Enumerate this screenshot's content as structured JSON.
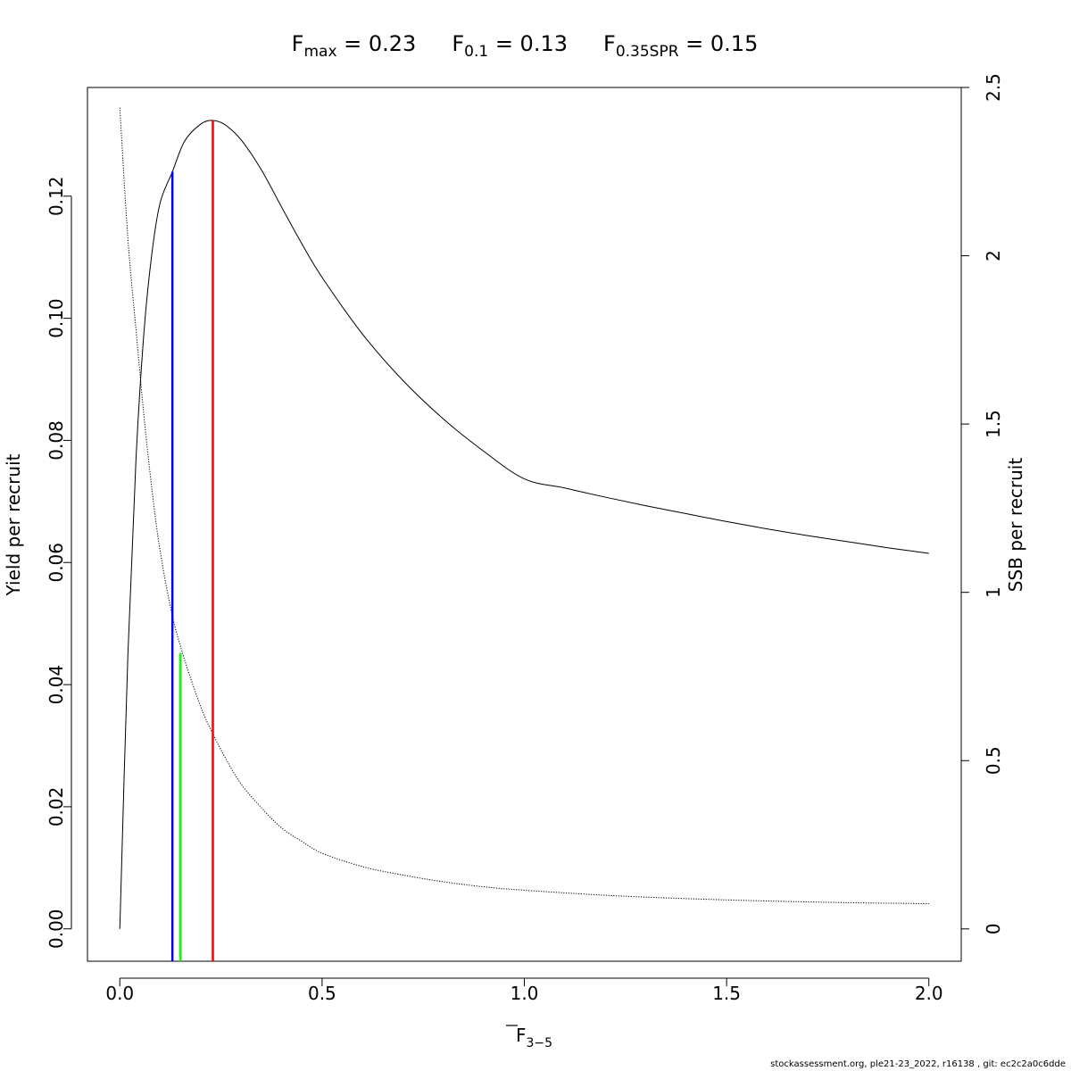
{
  "title": {
    "fmax": {
      "symbol": "F",
      "subscript": "max",
      "value_text": " = 0.23"
    },
    "f01": {
      "symbol": "F",
      "subscript": "0.1",
      "value_text": " = 0.13"
    },
    "f035": {
      "symbol": "F",
      "subscript": "0.35SPR",
      "value_text": " = 0.15"
    }
  },
  "footer": "stockassessment.org, ple21-23_2022, r16138 , git: ec2c2a0c6dde",
  "chart_data": {
    "type": "line",
    "x_label": {
      "symbol": "F",
      "subscript": "3−5",
      "overline": true
    },
    "ylabel_left": "Yield per recruit",
    "ylabel_right": "SSB per recruit",
    "xlim": [
      -0.08,
      2.08
    ],
    "ylim_left": [
      -0.0053,
      0.1378
    ],
    "ylim_right": [
      -0.096,
      2.5
    ],
    "x_ticks": [
      0.0,
      0.5,
      1.0,
      1.5,
      2.0
    ],
    "x_tick_labels": [
      "0.0",
      "0.5",
      "1.0",
      "1.5",
      "2.0"
    ],
    "y_left_ticks": [
      0.0,
      0.02,
      0.04,
      0.06,
      0.08,
      0.1,
      0.12
    ],
    "y_left_tick_labels": [
      "0.00",
      "0.02",
      "0.04",
      "0.06",
      "0.08",
      "0.10",
      "0.12"
    ],
    "y_right_ticks": [
      0,
      0.5,
      1,
      1.5,
      2,
      2.5
    ],
    "y_right_tick_labels": [
      "0",
      "0.5",
      "1",
      "1.5",
      "2",
      "2.5"
    ],
    "series": [
      {
        "axis": "left",
        "style": "solid",
        "color": "#000000",
        "x": [
          0,
          0.02,
          0.04,
          0.06,
          0.08,
          0.1,
          0.13,
          0.16,
          0.2,
          0.23,
          0.26,
          0.3,
          0.35,
          0.4,
          0.45,
          0.5,
          0.6,
          0.7,
          0.8,
          0.9,
          1.0,
          1.1,
          1.2,
          1.3,
          1.4,
          1.5,
          1.6,
          1.7,
          1.8,
          1.9,
          2.0
        ],
        "y": [
          0.0,
          0.045,
          0.077,
          0.098,
          0.111,
          0.119,
          0.124,
          0.129,
          0.1318,
          0.1324,
          0.1317,
          0.1292,
          0.1243,
          0.1182,
          0.1122,
          0.1067,
          0.0974,
          0.0898,
          0.0835,
          0.0782,
          0.0737,
          0.0722,
          0.0707,
          0.0693,
          0.068,
          0.0667,
          0.0655,
          0.0644,
          0.0634,
          0.0624,
          0.0615
        ]
      },
      {
        "axis": "right",
        "style": "dotted",
        "color": "#000000",
        "x": [
          0,
          0.02,
          0.04,
          0.06,
          0.08,
          0.1,
          0.13,
          0.16,
          0.2,
          0.23,
          0.26,
          0.3,
          0.35,
          0.4,
          0.45,
          0.5,
          0.6,
          0.7,
          0.8,
          0.9,
          1.0,
          1.2,
          1.4,
          1.6,
          1.8,
          2.0
        ],
        "y": [
          2.44,
          2.05,
          1.78,
          1.52,
          1.3,
          1.12,
          0.93,
          0.8,
          0.66,
          0.58,
          0.51,
          0.43,
          0.36,
          0.3,
          0.26,
          0.225,
          0.185,
          0.16,
          0.14,
          0.125,
          0.115,
          0.1,
          0.09,
          0.083,
          0.078,
          0.075
        ]
      }
    ],
    "reference_lines": [
      {
        "name": "F0.1",
        "color": "#0000ff",
        "x": 0.13,
        "y_top": 0.124
      },
      {
        "name": "F0.35SPR",
        "color": "#00ff00",
        "x": 0.15,
        "y_top": 0.0452
      },
      {
        "name": "Fmax",
        "color": "#ff0000",
        "x": 0.23,
        "y_top": 0.1324
      }
    ]
  }
}
